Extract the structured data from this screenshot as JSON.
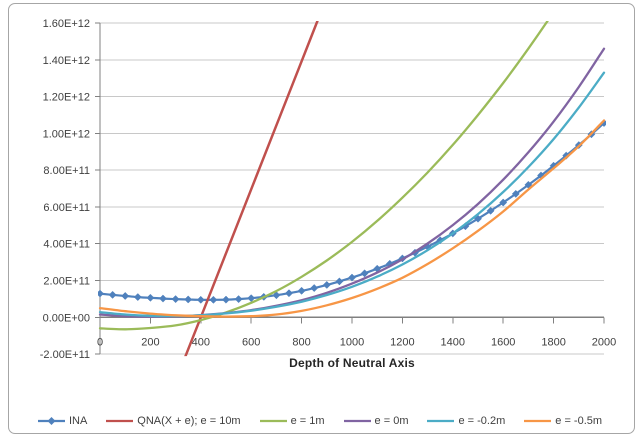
{
  "chart_data": {
    "type": "line",
    "title": "",
    "xlabel": "Depth of Neutral Axis",
    "ylabel": "",
    "xlim": [
      0,
      2000
    ],
    "ylim": [
      -200000000000.0,
      1600000000000.0
    ],
    "grid": "horizontal-y",
    "legend_position": "bottom",
    "x_ticks": [
      {
        "label": "0",
        "value": 0
      },
      {
        "label": "200",
        "value": 200
      },
      {
        "label": "400",
        "value": 400
      },
      {
        "label": "600",
        "value": 600
      },
      {
        "label": "800",
        "value": 800
      },
      {
        "label": "1000",
        "value": 1000
      },
      {
        "label": "1200",
        "value": 1200
      },
      {
        "label": "1400",
        "value": 1400
      },
      {
        "label": "1600",
        "value": 1600
      },
      {
        "label": "1800",
        "value": 1800
      },
      {
        "label": "2000",
        "value": 2000
      }
    ],
    "y_ticks": [
      {
        "label": "-2.00E+11",
        "value": -200000000000.0
      },
      {
        "label": "0.00E+00",
        "value": 0
      },
      {
        "label": "2.00E+11",
        "value": 200000000000.0
      },
      {
        "label": "4.00E+11",
        "value": 400000000000.0
      },
      {
        "label": "6.00E+11",
        "value": 600000000000.0
      },
      {
        "label": "8.00E+11",
        "value": 800000000000.0
      },
      {
        "label": "1.00E+12",
        "value": 1000000000000.0
      },
      {
        "label": "1.20E+12",
        "value": 1200000000000.0
      },
      {
        "label": "1.40E+12",
        "value": 1400000000000.0
      },
      {
        "label": "1.60E+12",
        "value": 1600000000000.0
      }
    ],
    "series": [
      {
        "name": "INA",
        "color": "#4F81BD",
        "marker": "diamond",
        "width": 2.2,
        "x": [
          0,
          50,
          100,
          150,
          200,
          250,
          300,
          350,
          400,
          450,
          500,
          550,
          600,
          650,
          700,
          750,
          800,
          850,
          900,
          950,
          1000,
          1050,
          1100,
          1150,
          1200,
          1250,
          1300,
          1350,
          1400,
          1450,
          1500,
          1550,
          1600,
          1650,
          1700,
          1750,
          1800,
          1850,
          1900,
          1950,
          2000
        ],
        "values": [
          129000000000.0,
          122000000000.0,
          116000000000.0,
          110000000000.0,
          106000000000.0,
          102000000000.0,
          99000000000.0,
          97000000000.0,
          95000000000.0,
          95000000000.0,
          96000000000.0,
          99000000000.0,
          104000000000.0,
          111000000000.0,
          120000000000.0,
          131000000000.0,
          144000000000.0,
          159000000000.0,
          176000000000.0,
          195000000000.0,
          216000000000.0,
          239000000000.0,
          264000000000.0,
          291000000000.0,
          320000000000.0,
          351000000000.0,
          384000000000.0,
          419000000000.0,
          456000000000.0,
          495000000000.0,
          536000000000.0,
          579000000000.0,
          624000000000.0,
          671000000000.0,
          720000000000.0,
          771000000000.0,
          824000000000.0,
          879000000000.0,
          936000000000.0,
          995000000000.0,
          1056000000000.0
        ]
      },
      {
        "name": "QNA(X + e); e = 10m",
        "color": "#C0504D",
        "marker": "none",
        "width": 2.5,
        "x": [
          300,
          400,
          500,
          600,
          700,
          800,
          900
        ],
        "values": [
          -348000000000.0,
          0,
          348000000000.0,
          696000000000.0,
          1044000000000.0,
          1392000000000.0,
          1740000000000.0
        ]
      },
      {
        "name": "e = 1m",
        "color": "#9BBB59",
        "marker": "none",
        "width": 2.3,
        "x": [
          0,
          100,
          200,
          300,
          400,
          500,
          600,
          700,
          800,
          900,
          1000,
          1100,
          1200,
          1300,
          1400,
          1500,
          1600,
          1700,
          1800,
          1900,
          2000
        ],
        "values": [
          -60000000000.0,
          -65000000000.0,
          -58000000000.0,
          -44000000000.0,
          -15000000000.0,
          26000000000.0,
          79000000000.0,
          143000000000.0,
          220000000000.0,
          309000000000.0,
          410000000000.0,
          524000000000.0,
          650000000000.0,
          787000000000.0,
          937000000000.0,
          1100000000000.0,
          1274000000000.0,
          1461000000000.0,
          1660000000000.0,
          1870000000000.0,
          2094000000000.0
        ]
      },
      {
        "name": "e = 0m",
        "color": "#8064A2",
        "marker": "none",
        "width": 2.3,
        "x": [
          0,
          100,
          200,
          300,
          400,
          500,
          600,
          700,
          800,
          900,
          1000,
          1100,
          1200,
          1300,
          1400,
          1500,
          1600,
          1700,
          1800,
          1900,
          2000
        ],
        "values": [
          15000000000.0,
          6000000000.0,
          3000000000.0,
          5000000000.0,
          12000000000.0,
          23000000000.0,
          39000000000.0,
          63000000000.0,
          93000000000.0,
          133000000000.0,
          183000000000.0,
          243000000000.0,
          315000000000.0,
          401000000000.0,
          501000000000.0,
          616000000000.0,
          748000000000.0,
          897000000000.0,
          1064000000000.0,
          1252000000000.0,
          1460000000000.0
        ]
      },
      {
        "name": "e = -0.2m",
        "color": "#4BACC6",
        "marker": "none",
        "width": 2.3,
        "x": [
          0,
          100,
          200,
          300,
          400,
          500,
          600,
          700,
          800,
          900,
          1000,
          1100,
          1200,
          1300,
          1400,
          1500,
          1600,
          1700,
          1800,
          1900,
          2000
        ],
        "values": [
          28000000000.0,
          15000000000.0,
          8000000000.0,
          7000000000.0,
          11000000000.0,
          21000000000.0,
          36000000000.0,
          57000000000.0,
          85000000000.0,
          121000000000.0,
          166000000000.0,
          221000000000.0,
          287000000000.0,
          365000000000.0,
          456000000000.0,
          561000000000.0,
          681000000000.0,
          817000000000.0,
          969000000000.0,
          1140000000000.0,
          1330000000000.0
        ]
      },
      {
        "name": "e = -0.5m",
        "color": "#F79646",
        "marker": "none",
        "width": 2.3,
        "x": [
          0,
          100,
          200,
          300,
          400,
          500,
          600,
          700,
          800,
          900,
          1000,
          1100,
          1200,
          1300,
          1400,
          1500,
          1600,
          1700,
          1800,
          1900,
          2000
        ],
        "values": [
          50000000000.0,
          33000000000.0,
          20000000000.0,
          11000000000.0,
          6000000000.0,
          4000000000.0,
          6000000000.0,
          15000000000.0,
          35000000000.0,
          65000000000.0,
          105000000000.0,
          155000000000.0,
          215000000000.0,
          290000000000.0,
          375000000000.0,
          470000000000.0,
          575000000000.0,
          695000000000.0,
          810000000000.0,
          930000000000.0,
          1070000000000.0
        ]
      }
    ],
    "colors": {
      "axis": "#808080",
      "gridline": "#C8C8C8",
      "frame_border": "#A6A6A6",
      "tick_text": "#3F3F3F",
      "axis_title_text": "#262626",
      "background": "#FFFFFF"
    }
  }
}
